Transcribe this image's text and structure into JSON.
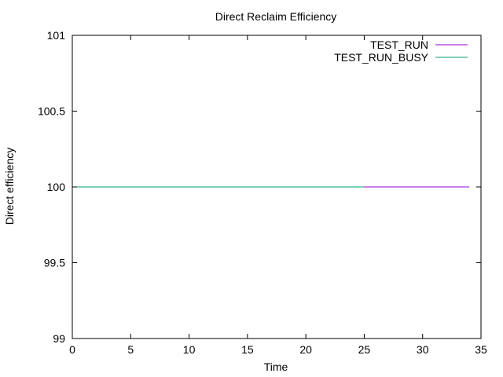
{
  "chart_data": {
    "type": "line",
    "title": "Direct Reclaim Efficiency",
    "xlabel": "Time",
    "ylabel": "Direct efficiency",
    "xlim": [
      0,
      35
    ],
    "ylim": [
      99,
      101
    ],
    "x_ticks": [
      "0",
      "5",
      "10",
      "15",
      "20",
      "25",
      "30",
      "35"
    ],
    "y_ticks": [
      "99",
      "99.5",
      "100",
      "100.5",
      "101"
    ],
    "grid": false,
    "legend_position": "top-right",
    "series": [
      {
        "name": "TEST_RUN",
        "color": "#9400d3",
        "x": [
          0,
          34
        ],
        "y": [
          100,
          100
        ]
      },
      {
        "name": "TEST_RUN_BUSY",
        "color": "#009e73",
        "x": [
          0,
          25
        ],
        "y": [
          100,
          100
        ]
      }
    ]
  }
}
